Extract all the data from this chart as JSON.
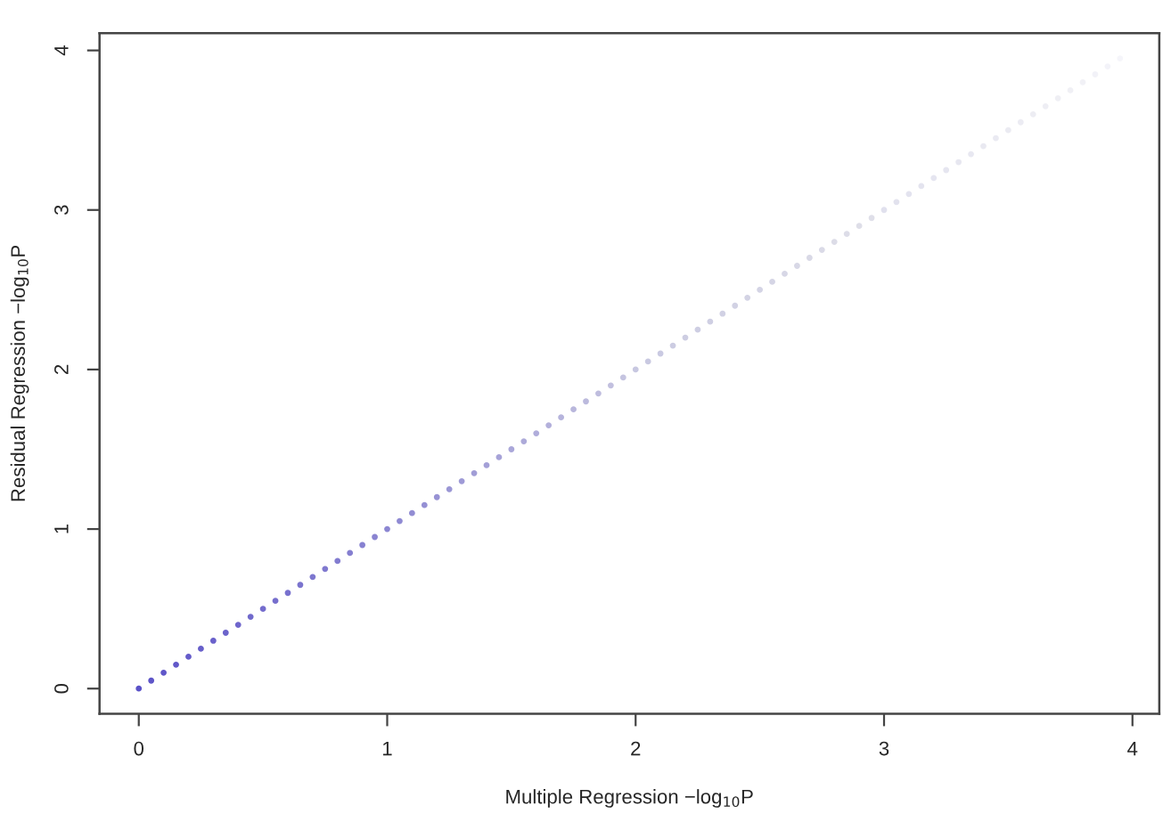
{
  "chart_data": {
    "type": "scatter",
    "xlabel": "Multiple Regression −log$_{10}$P",
    "ylabel": "Residual Regression −log$_{10}$P",
    "xlim": [
      -0.158,
      4.108
    ],
    "ylim": [
      -0.158,
      4.108
    ],
    "xticks": [
      0,
      1,
      2,
      3,
      4
    ],
    "yticks": [
      0,
      1,
      2,
      3,
      4
    ],
    "grid": false,
    "marker": "circle",
    "x": [
      0,
      0.05,
      0.1,
      0.15,
      0.2,
      0.25,
      0.3,
      0.35,
      0.4,
      0.45,
      0.5,
      0.55,
      0.6,
      0.65,
      0.7,
      0.75,
      0.8,
      0.85,
      0.9,
      0.95,
      1.0,
      1.05,
      1.1,
      1.15,
      1.2,
      1.25,
      1.3,
      1.35,
      1.4,
      1.45,
      1.5,
      1.55,
      1.6,
      1.65,
      1.7,
      1.75,
      1.8,
      1.85,
      1.9,
      1.95,
      2.0,
      2.05,
      2.1,
      2.15,
      2.2,
      2.25,
      2.3,
      2.35,
      2.4,
      2.45,
      2.5,
      2.55,
      2.6,
      2.65,
      2.7,
      2.75,
      2.8,
      2.85,
      2.9,
      2.95,
      3.0,
      3.05,
      3.1,
      3.15,
      3.2,
      3.25,
      3.3,
      3.35,
      3.4,
      3.45,
      3.5,
      3.55,
      3.6,
      3.65,
      3.7,
      3.75,
      3.8,
      3.85,
      3.9,
      3.95
    ],
    "values": [
      0,
      0.05,
      0.1,
      0.15,
      0.2,
      0.25,
      0.3,
      0.35,
      0.4,
      0.45,
      0.5,
      0.55,
      0.6,
      0.65,
      0.7,
      0.75,
      0.8,
      0.85,
      0.9,
      0.95,
      1.0,
      1.05,
      1.1,
      1.15,
      1.2,
      1.25,
      1.3,
      1.35,
      1.4,
      1.45,
      1.5,
      1.55,
      1.6,
      1.65,
      1.7,
      1.75,
      1.8,
      1.85,
      1.9,
      1.95,
      2.0,
      2.05,
      2.1,
      2.15,
      2.2,
      2.25,
      2.3,
      2.35,
      2.4,
      2.45,
      2.5,
      2.55,
      2.6,
      2.65,
      2.7,
      2.75,
      2.8,
      2.85,
      2.9,
      2.95,
      3.0,
      3.05,
      3.1,
      3.15,
      3.2,
      3.25,
      3.3,
      3.35,
      3.4,
      3.45,
      3.5,
      3.55,
      3.6,
      3.65,
      3.7,
      3.75,
      3.8,
      3.85,
      3.9,
      3.95
    ],
    "colors": [
      "#5b52c8",
      "#5e55c8",
      "#6057c9",
      "#6259c9",
      "#655cca",
      "#675fca",
      "#6a61cb",
      "#6c64cb",
      "#6f66cc",
      "#716acc",
      "#746ccd",
      "#766ecd",
      "#7871ce",
      "#7b74ce",
      "#7d77cf",
      "#8079cf",
      "#827cd0",
      "#857fd0",
      "#8781d1",
      "#8a84d1",
      "#8c87d2",
      "#8f8ad3",
      "#928dd3",
      "#9590d4",
      "#9893d4",
      "#9b97d5",
      "#9e9ad6",
      "#a19dd6",
      "#a4a0d7",
      "#a7a3d8",
      "#aaa7d9",
      "#adaad9",
      "#b0addb",
      "#b3b0db",
      "#b6b4dc",
      "#b9b7dc",
      "#bcbadd",
      "#bfbdde",
      "#c2c0df",
      "#c5c4e0",
      "#c8c8e1",
      "#c9c9e1",
      "#cacae2",
      "#cccce2",
      "#cdcde2",
      "#cecee3",
      "#cfcfe3",
      "#d1d1e4",
      "#d2d2e4",
      "#d3d3e4",
      "#d4d4e5",
      "#d5d5e5",
      "#d7d7e6",
      "#d8d8e6",
      "#d9d9e6",
      "#dadae7",
      "#dcdce7",
      "#dddde8",
      "#dedee8",
      "#dfdfe9",
      "#e1e1ee",
      "#e2e2ee",
      "#e3e3ef",
      "#e4e4ef",
      "#e5e5f0",
      "#e6e6f0",
      "#e7e7f0",
      "#e8e8f1",
      "#e9e9f1",
      "#eaeaf2",
      "#ebebf2",
      "#ececf3",
      "#ededf3",
      "#eeeef4",
      "#efeff4",
      "#f0f0f5",
      "#f1f1f6",
      "#f2f2f8",
      "#f3f3f9",
      "#f5f5fa"
    ]
  }
}
